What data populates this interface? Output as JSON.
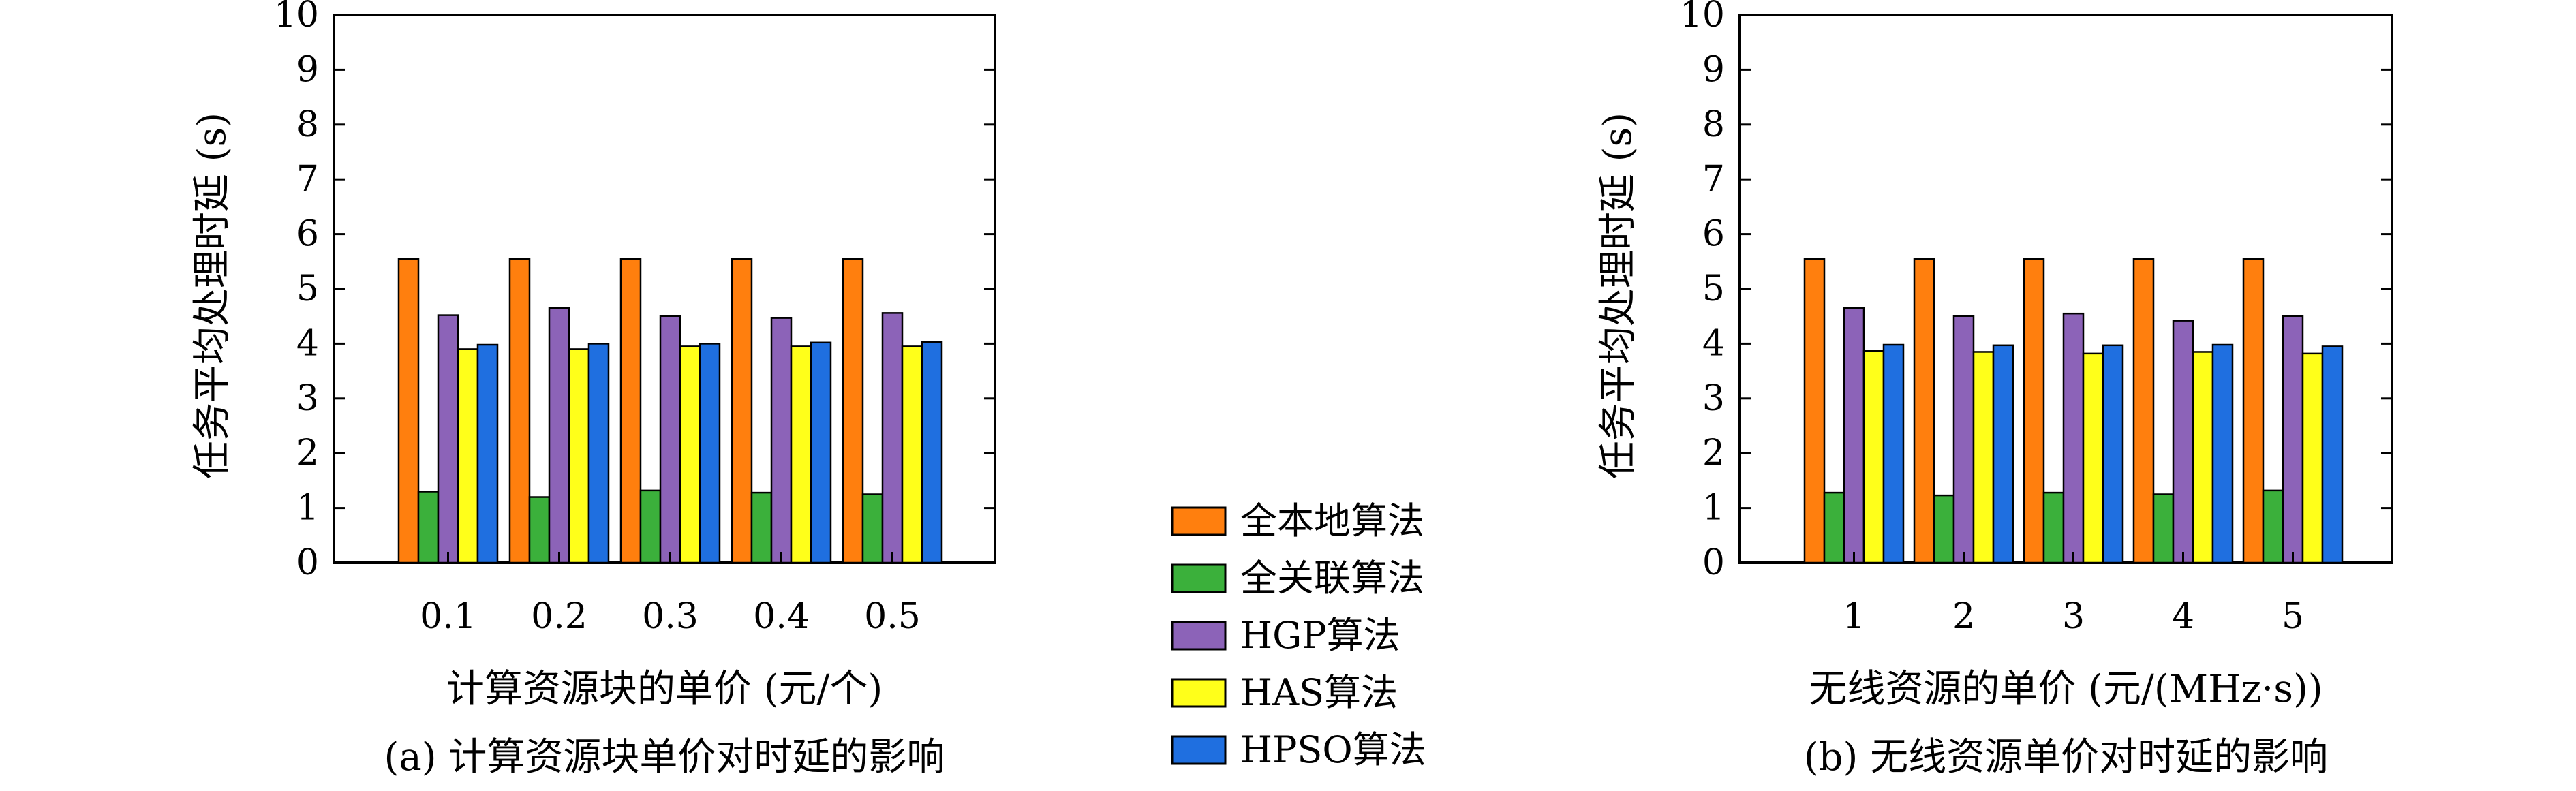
{
  "legend": [
    {
      "label": "全本地算法",
      "color": "#ff7f0e"
    },
    {
      "label": "全关联算法",
      "color": "#3bb03b"
    },
    {
      "label": "HGP算法",
      "color": "#8c63b8"
    },
    {
      "label": "HAS算法",
      "color": "#ffff1a"
    },
    {
      "label": "HPSO算法",
      "color": "#1f6fe0"
    }
  ],
  "chart_data": [
    {
      "type": "bar",
      "caption": "(a) 计算资源块单价对时延的影响",
      "xlabel": "计算资源块的单价 (元/个)",
      "ylabel": "任务平均处理时延 (s)",
      "ylim": [
        0,
        10
      ],
      "yticks": [
        "0",
        "1",
        "2",
        "3",
        "4",
        "5",
        "6",
        "7",
        "8",
        "9",
        "10"
      ],
      "grid": false,
      "legend_position": "center, between panels",
      "categories": [
        "0.1",
        "0.2",
        "0.3",
        "0.4",
        "0.5"
      ],
      "series": [
        {
          "name": "全本地算法",
          "values": [
            5.55,
            5.55,
            5.55,
            5.55,
            5.55
          ]
        },
        {
          "name": "全关联算法",
          "values": [
            1.3,
            1.2,
            1.32,
            1.28,
            1.25
          ]
        },
        {
          "name": "HGP算法",
          "values": [
            4.52,
            4.65,
            4.5,
            4.47,
            4.56
          ]
        },
        {
          "name": "HAS算法",
          "values": [
            3.9,
            3.9,
            3.95,
            3.95,
            3.95
          ]
        },
        {
          "name": "HPSO算法",
          "values": [
            3.98,
            4.0,
            4.0,
            4.02,
            4.03
          ]
        }
      ]
    },
    {
      "type": "bar",
      "caption": "(b) 无线资源单价对时延的影响",
      "xlabel": "无线资源的单价 (元/(MHz·s))",
      "ylabel": "任务平均处理时延 (s)",
      "ylim": [
        0,
        10
      ],
      "yticks": [
        "0",
        "1",
        "2",
        "3",
        "4",
        "5",
        "6",
        "7",
        "8",
        "9",
        "10"
      ],
      "grid": false,
      "categories": [
        "1",
        "2",
        "3",
        "4",
        "5"
      ],
      "series": [
        {
          "name": "全本地算法",
          "values": [
            5.55,
            5.55,
            5.55,
            5.55,
            5.55
          ]
        },
        {
          "name": "全关联算法",
          "values": [
            1.28,
            1.23,
            1.28,
            1.25,
            1.32
          ]
        },
        {
          "name": "HGP算法",
          "values": [
            4.65,
            4.5,
            4.55,
            4.42,
            4.5
          ]
        },
        {
          "name": "HAS算法",
          "values": [
            3.87,
            3.85,
            3.82,
            3.85,
            3.82
          ]
        },
        {
          "name": "HPSO算法",
          "values": [
            3.98,
            3.97,
            3.97,
            3.98,
            3.95
          ]
        }
      ]
    }
  ]
}
